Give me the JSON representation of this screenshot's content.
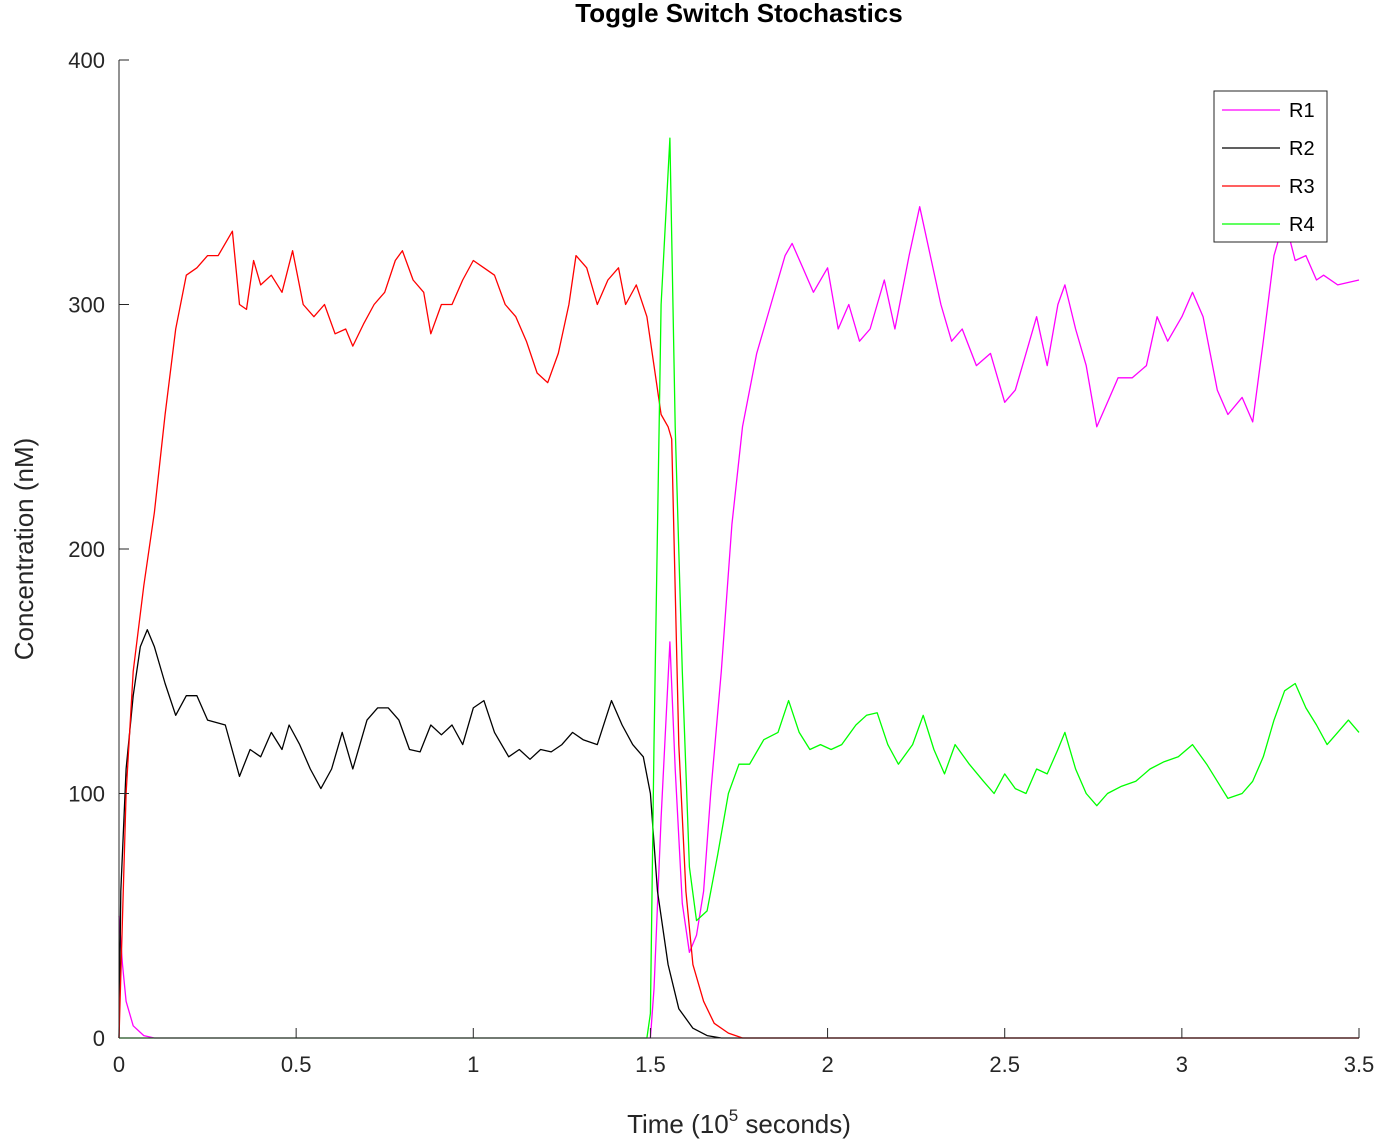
{
  "chart_data": {
    "type": "line",
    "title": "Toggle Switch Stochastics",
    "xlabel": {
      "prefix": "Time (10",
      "superscript": "5",
      "suffix": " seconds)"
    },
    "ylabel": "Concentration (nM)",
    "xlim": [
      0,
      3.5
    ],
    "ylim": [
      0,
      400
    ],
    "xticks": [
      0,
      0.5,
      1,
      1.5,
      2,
      2.5,
      3,
      3.5
    ],
    "xtick_labels": [
      "0",
      "0.5",
      "1",
      "1.5",
      "2",
      "2.5",
      "3",
      "3.5"
    ],
    "yticks": [
      0,
      100,
      200,
      300,
      400
    ],
    "ytick_labels": [
      "0",
      "100",
      "200",
      "300",
      "400"
    ],
    "grid": false,
    "legend_position": "top-right",
    "series": [
      {
        "name": "R1",
        "color": "#ff00ff",
        "points": [
          [
            0,
            50
          ],
          [
            0.01,
            30
          ],
          [
            0.02,
            15
          ],
          [
            0.04,
            5
          ],
          [
            0.07,
            1
          ],
          [
            0.1,
            0
          ],
          [
            1.5,
            0
          ],
          [
            1.51,
            20
          ],
          [
            1.53,
            90
          ],
          [
            1.555,
            162
          ],
          [
            1.57,
            110
          ],
          [
            1.59,
            55
          ],
          [
            1.61,
            35
          ],
          [
            1.63,
            42
          ],
          [
            1.65,
            60
          ],
          [
            1.67,
            100
          ],
          [
            1.7,
            150
          ],
          [
            1.73,
            210
          ],
          [
            1.76,
            250
          ],
          [
            1.8,
            280
          ],
          [
            1.84,
            300
          ],
          [
            1.88,
            320
          ],
          [
            1.9,
            325
          ],
          [
            1.93,
            315
          ],
          [
            1.96,
            305
          ],
          [
            2.0,
            315
          ],
          [
            2.03,
            290
          ],
          [
            2.06,
            300
          ],
          [
            2.09,
            285
          ],
          [
            2.12,
            290
          ],
          [
            2.16,
            310
          ],
          [
            2.19,
            290
          ],
          [
            2.23,
            320
          ],
          [
            2.26,
            340
          ],
          [
            2.29,
            320
          ],
          [
            2.32,
            300
          ],
          [
            2.35,
            285
          ],
          [
            2.38,
            290
          ],
          [
            2.42,
            275
          ],
          [
            2.46,
            280
          ],
          [
            2.5,
            260
          ],
          [
            2.53,
            265
          ],
          [
            2.56,
            280
          ],
          [
            2.59,
            295
          ],
          [
            2.62,
            275
          ],
          [
            2.65,
            300
          ],
          [
            2.67,
            308
          ],
          [
            2.7,
            290
          ],
          [
            2.73,
            275
          ],
          [
            2.76,
            250
          ],
          [
            2.79,
            260
          ],
          [
            2.82,
            270
          ],
          [
            2.86,
            270
          ],
          [
            2.9,
            275
          ],
          [
            2.93,
            295
          ],
          [
            2.96,
            285
          ],
          [
            3.0,
            295
          ],
          [
            3.03,
            305
          ],
          [
            3.06,
            295
          ],
          [
            3.1,
            265
          ],
          [
            3.13,
            255
          ],
          [
            3.17,
            262
          ],
          [
            3.2,
            252
          ],
          [
            3.23,
            285
          ],
          [
            3.26,
            320
          ],
          [
            3.29,
            335
          ],
          [
            3.32,
            318
          ],
          [
            3.35,
            320
          ],
          [
            3.38,
            310
          ],
          [
            3.4,
            312
          ],
          [
            3.44,
            308
          ],
          [
            3.5,
            310
          ]
        ]
      },
      {
        "name": "R2",
        "color": "#000000",
        "points": [
          [
            0,
            0
          ],
          [
            0.005,
            60
          ],
          [
            0.02,
            110
          ],
          [
            0.04,
            140
          ],
          [
            0.06,
            160
          ],
          [
            0.08,
            167
          ],
          [
            0.1,
            160
          ],
          [
            0.13,
            145
          ],
          [
            0.16,
            132
          ],
          [
            0.19,
            140
          ],
          [
            0.22,
            140
          ],
          [
            0.25,
            130
          ],
          [
            0.3,
            128
          ],
          [
            0.34,
            107
          ],
          [
            0.37,
            118
          ],
          [
            0.4,
            115
          ],
          [
            0.43,
            125
          ],
          [
            0.46,
            118
          ],
          [
            0.48,
            128
          ],
          [
            0.51,
            120
          ],
          [
            0.54,
            110
          ],
          [
            0.57,
            102
          ],
          [
            0.6,
            110
          ],
          [
            0.63,
            125
          ],
          [
            0.66,
            110
          ],
          [
            0.7,
            130
          ],
          [
            0.73,
            135
          ],
          [
            0.76,
            135
          ],
          [
            0.79,
            130
          ],
          [
            0.82,
            118
          ],
          [
            0.85,
            117
          ],
          [
            0.88,
            128
          ],
          [
            0.91,
            124
          ],
          [
            0.94,
            128
          ],
          [
            0.97,
            120
          ],
          [
            1.0,
            135
          ],
          [
            1.03,
            138
          ],
          [
            1.06,
            125
          ],
          [
            1.1,
            115
          ],
          [
            1.13,
            118
          ],
          [
            1.16,
            114
          ],
          [
            1.19,
            118
          ],
          [
            1.22,
            117
          ],
          [
            1.25,
            120
          ],
          [
            1.28,
            125
          ],
          [
            1.31,
            122
          ],
          [
            1.35,
            120
          ],
          [
            1.39,
            138
          ],
          [
            1.42,
            128
          ],
          [
            1.45,
            120
          ],
          [
            1.48,
            115
          ],
          [
            1.5,
            100
          ],
          [
            1.52,
            60
          ],
          [
            1.55,
            30
          ],
          [
            1.58,
            12
          ],
          [
            1.62,
            4
          ],
          [
            1.66,
            1
          ],
          [
            1.7,
            0
          ],
          [
            3.5,
            0
          ]
        ]
      },
      {
        "name": "R3",
        "color": "#ff0000",
        "points": [
          [
            0,
            0
          ],
          [
            0.02,
            100
          ],
          [
            0.04,
            150
          ],
          [
            0.07,
            185
          ],
          [
            0.1,
            215
          ],
          [
            0.13,
            255
          ],
          [
            0.16,
            290
          ],
          [
            0.19,
            312
          ],
          [
            0.22,
            315
          ],
          [
            0.25,
            320
          ],
          [
            0.28,
            320
          ],
          [
            0.32,
            330
          ],
          [
            0.34,
            300
          ],
          [
            0.36,
            298
          ],
          [
            0.38,
            318
          ],
          [
            0.4,
            308
          ],
          [
            0.43,
            312
          ],
          [
            0.46,
            305
          ],
          [
            0.49,
            322
          ],
          [
            0.52,
            300
          ],
          [
            0.55,
            295
          ],
          [
            0.58,
            300
          ],
          [
            0.61,
            288
          ],
          [
            0.64,
            290
          ],
          [
            0.66,
            283
          ],
          [
            0.69,
            292
          ],
          [
            0.72,
            300
          ],
          [
            0.75,
            305
          ],
          [
            0.78,
            318
          ],
          [
            0.8,
            322
          ],
          [
            0.83,
            310
          ],
          [
            0.86,
            305
          ],
          [
            0.88,
            288
          ],
          [
            0.91,
            300
          ],
          [
            0.94,
            300
          ],
          [
            0.97,
            310
          ],
          [
            1.0,
            318
          ],
          [
            1.03,
            315
          ],
          [
            1.06,
            312
          ],
          [
            1.09,
            300
          ],
          [
            1.12,
            295
          ],
          [
            1.15,
            285
          ],
          [
            1.18,
            272
          ],
          [
            1.21,
            268
          ],
          [
            1.24,
            280
          ],
          [
            1.27,
            300
          ],
          [
            1.29,
            320
          ],
          [
            1.32,
            315
          ],
          [
            1.35,
            300
          ],
          [
            1.38,
            310
          ],
          [
            1.41,
            315
          ],
          [
            1.43,
            300
          ],
          [
            1.46,
            308
          ],
          [
            1.49,
            295
          ],
          [
            1.51,
            275
          ],
          [
            1.53,
            255
          ],
          [
            1.55,
            250
          ],
          [
            1.56,
            245
          ],
          [
            1.58,
            120
          ],
          [
            1.6,
            60
          ],
          [
            1.62,
            30
          ],
          [
            1.65,
            15
          ],
          [
            1.68,
            6
          ],
          [
            1.72,
            2
          ],
          [
            1.76,
            0
          ],
          [
            3.5,
            0
          ]
        ]
      },
      {
        "name": "R4",
        "color": "#00ff00",
        "points": [
          [
            0,
            0
          ],
          [
            1.49,
            0
          ],
          [
            1.5,
            10
          ],
          [
            1.51,
            120
          ],
          [
            1.53,
            300
          ],
          [
            1.555,
            368
          ],
          [
            1.57,
            250
          ],
          [
            1.59,
            150
          ],
          [
            1.61,
            70
          ],
          [
            1.63,
            48
          ],
          [
            1.66,
            52
          ],
          [
            1.69,
            75
          ],
          [
            1.72,
            100
          ],
          [
            1.75,
            112
          ],
          [
            1.78,
            112
          ],
          [
            1.82,
            122
          ],
          [
            1.86,
            125
          ],
          [
            1.89,
            138
          ],
          [
            1.92,
            125
          ],
          [
            1.95,
            118
          ],
          [
            1.98,
            120
          ],
          [
            2.01,
            118
          ],
          [
            2.04,
            120
          ],
          [
            2.08,
            128
          ],
          [
            2.11,
            132
          ],
          [
            2.14,
            133
          ],
          [
            2.17,
            120
          ],
          [
            2.2,
            112
          ],
          [
            2.24,
            120
          ],
          [
            2.27,
            132
          ],
          [
            2.3,
            118
          ],
          [
            2.33,
            108
          ],
          [
            2.36,
            120
          ],
          [
            2.4,
            112
          ],
          [
            2.44,
            105
          ],
          [
            2.47,
            100
          ],
          [
            2.5,
            108
          ],
          [
            2.53,
            102
          ],
          [
            2.56,
            100
          ],
          [
            2.59,
            110
          ],
          [
            2.62,
            108
          ],
          [
            2.65,
            118
          ],
          [
            2.67,
            125
          ],
          [
            2.7,
            110
          ],
          [
            2.73,
            100
          ],
          [
            2.76,
            95
          ],
          [
            2.79,
            100
          ],
          [
            2.83,
            103
          ],
          [
            2.87,
            105
          ],
          [
            2.91,
            110
          ],
          [
            2.95,
            113
          ],
          [
            2.99,
            115
          ],
          [
            3.03,
            120
          ],
          [
            3.07,
            112
          ],
          [
            3.1,
            105
          ],
          [
            3.13,
            98
          ],
          [
            3.17,
            100
          ],
          [
            3.2,
            105
          ],
          [
            3.23,
            115
          ],
          [
            3.26,
            130
          ],
          [
            3.29,
            142
          ],
          [
            3.32,
            145
          ],
          [
            3.35,
            135
          ],
          [
            3.38,
            128
          ],
          [
            3.41,
            120
          ],
          [
            3.44,
            125
          ],
          [
            3.47,
            130
          ],
          [
            3.5,
            125
          ]
        ]
      }
    ]
  }
}
